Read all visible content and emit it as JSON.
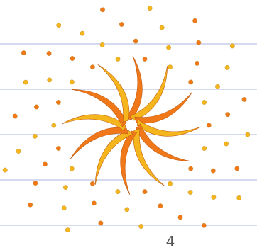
{
  "page": {
    "number": "4"
  },
  "palette": {
    "background": "#ffffff",
    "rule_line": "#c9cee9",
    "orange": "#f07818",
    "gold": "#f5b51c",
    "dot_stroke": "#b98a2a"
  },
  "artwork": {
    "subject": "swirl-sunburst-icon",
    "petal_count": 12,
    "dot_ring_count": 3
  }
}
